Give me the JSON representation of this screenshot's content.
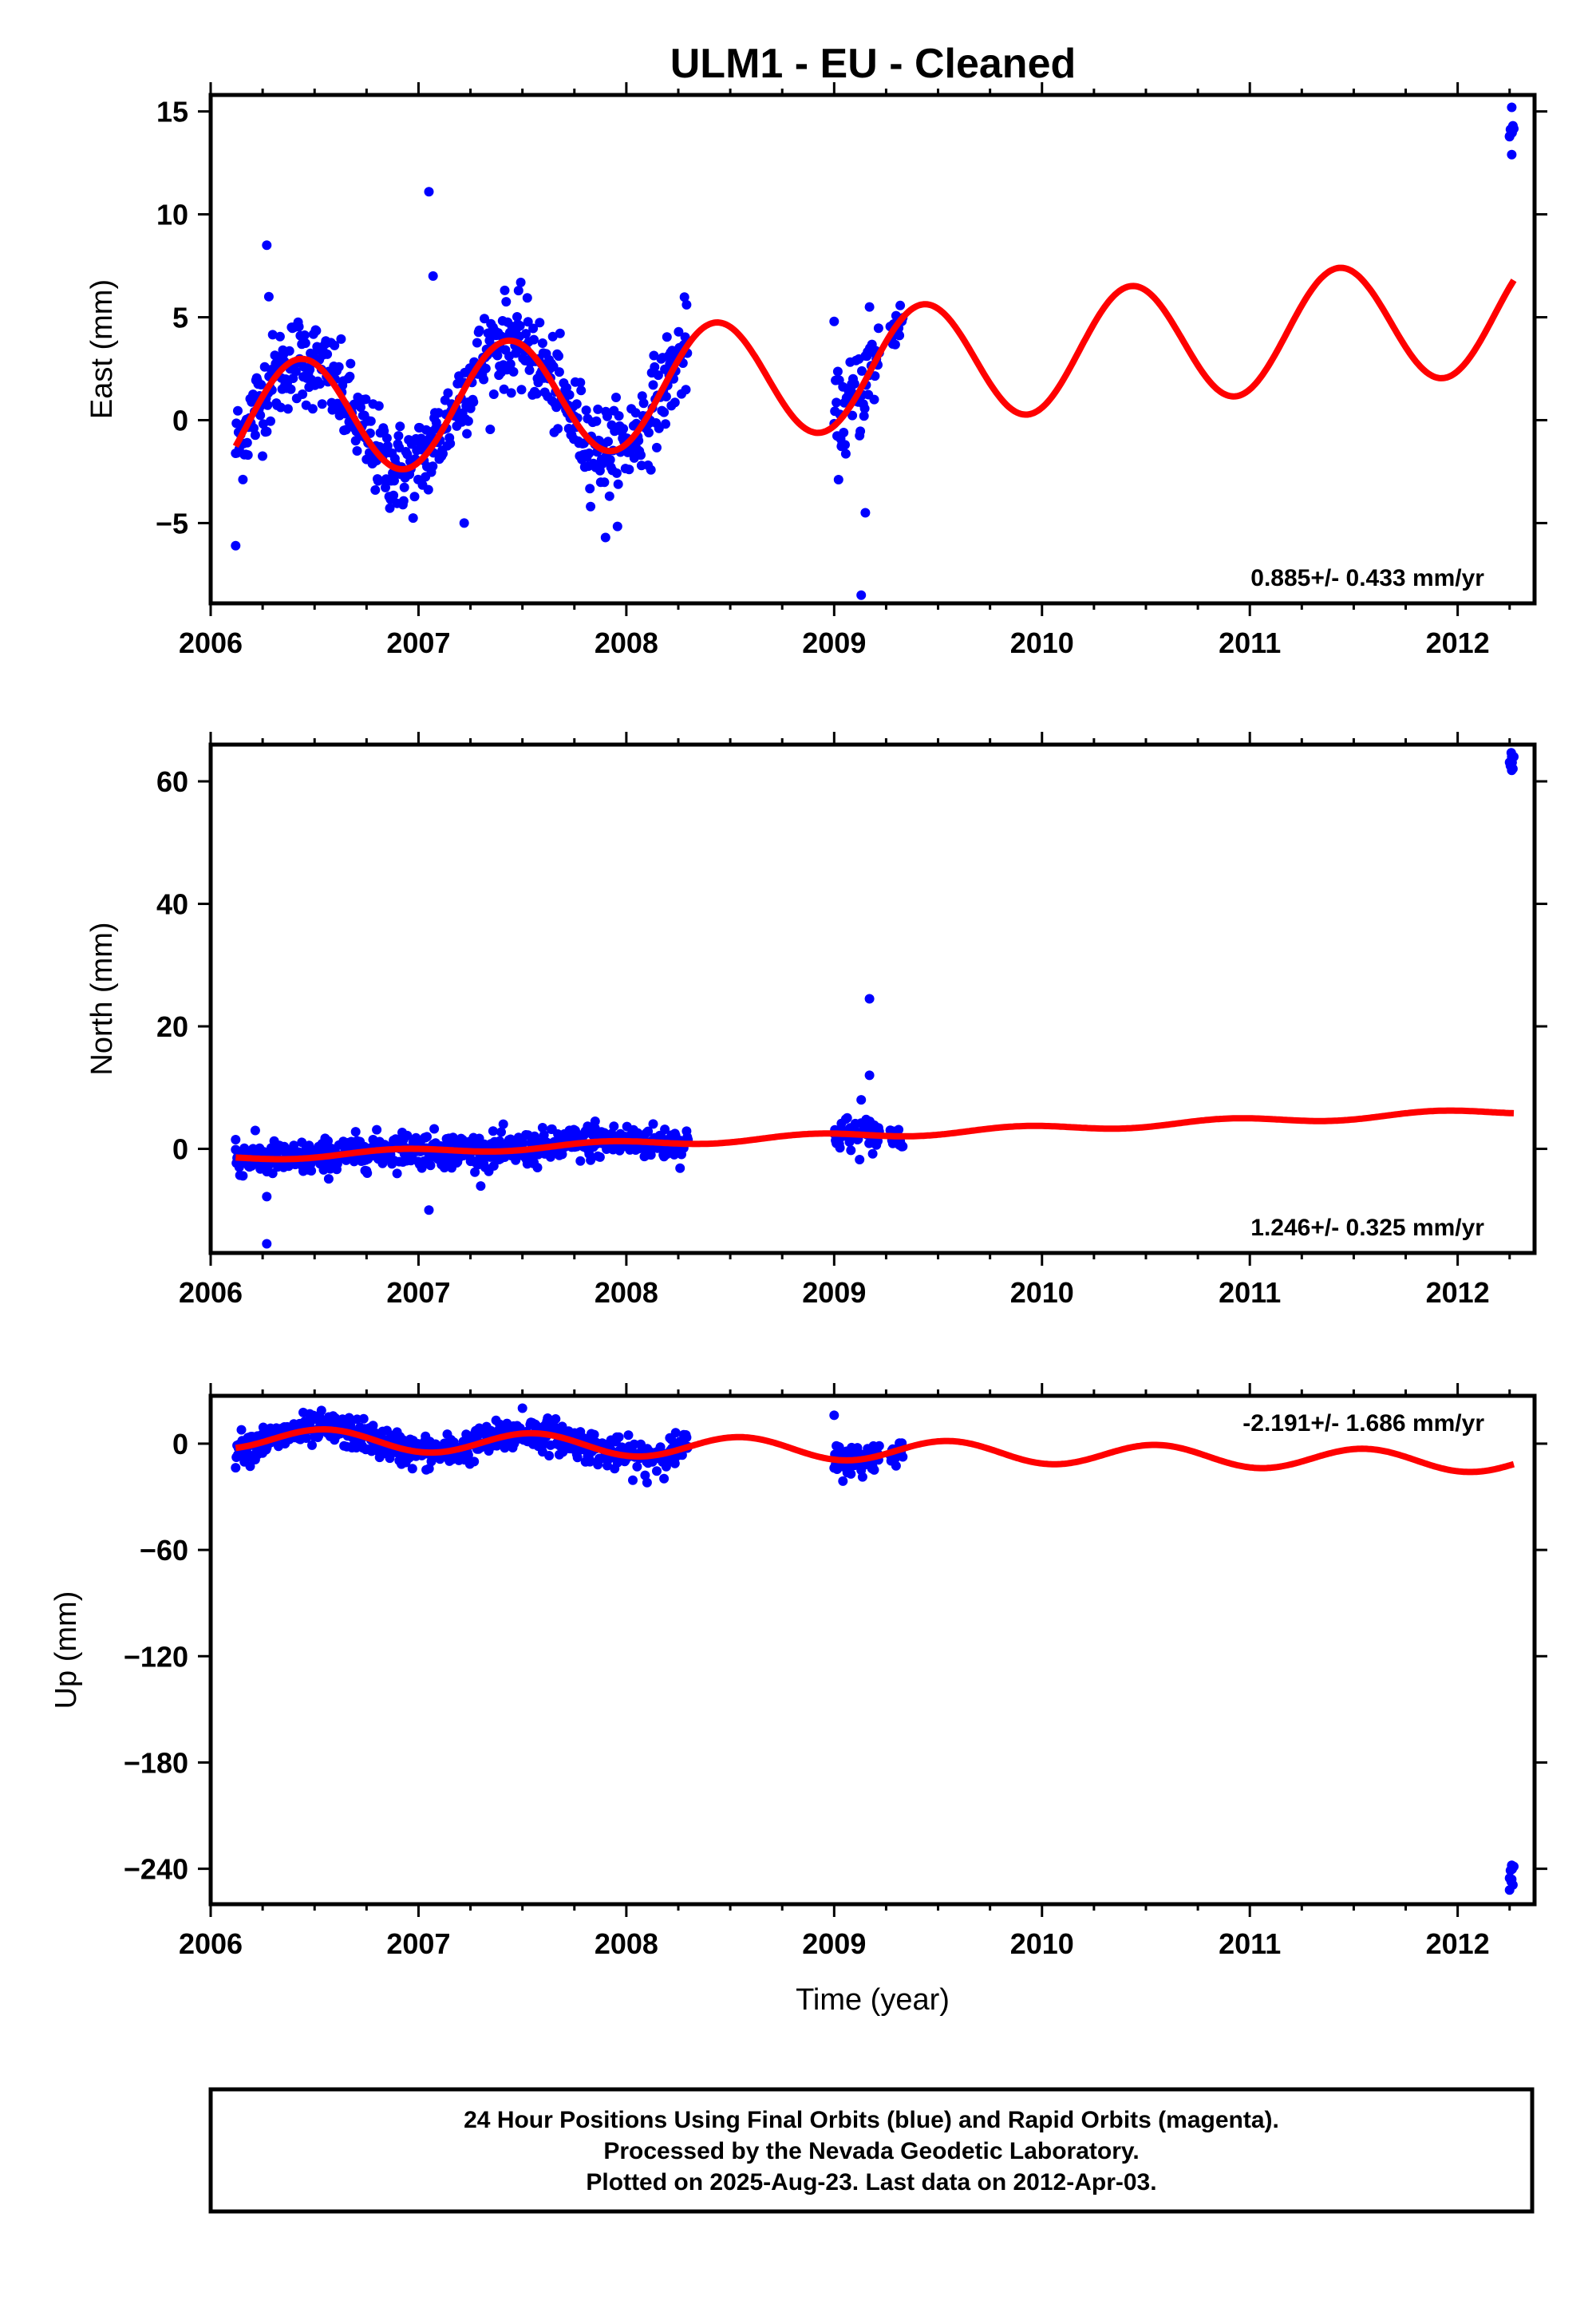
{
  "figure": {
    "title": "ULM1  - EU - Cleaned",
    "footer": [
      "24 Hour Positions Using Final Orbits (blue) and Rapid Orbits (magenta).",
      "Processed by the Nevada Geodetic Laboratory.",
      "Plotted on 2025-Aug-23. Last data on 2012-Apr-03."
    ]
  },
  "colors": {
    "data_points": "#0000ff",
    "model_fit": "#ff0000",
    "axes": "#000000"
  },
  "chart_data": [
    {
      "type": "scatter",
      "name": "east",
      "ylabel": "East (mm)",
      "xlabel": "",
      "xlim": [
        2006.0,
        2012.37
      ],
      "ylim": [
        -8.9,
        15.8
      ],
      "xticks": [
        2006,
        2007,
        2008,
        2009,
        2010,
        2011,
        2012
      ],
      "yticks": [
        -5,
        0,
        5,
        10,
        15
      ],
      "rate_text": "0.885+/- 0.433 mm/yr",
      "rate_position": "bottom-right",
      "model": {
        "t0": 2006.12,
        "t_end": 2012.27,
        "offset": -0.2,
        "rate": 0.885,
        "amplitude": 2.9,
        "phase_peak": 0.43
      },
      "data_segments": [
        {
          "start": 2006.12,
          "end": 2008.3,
          "spread": 1.1
        },
        {
          "start": 2009.0,
          "end": 2009.22,
          "spread": 1.1
        },
        {
          "start": 2009.27,
          "end": 2009.33,
          "spread": 0.6
        },
        {
          "start": 2012.25,
          "end": 2012.27,
          "spread": 0.4,
          "y_override": 14.0
        }
      ],
      "outliers": [
        [
          2006.12,
          -6.1
        ],
        [
          2006.27,
          8.5
        ],
        [
          2006.28,
          6.0
        ],
        [
          2007.05,
          11.1
        ],
        [
          2007.07,
          7.0
        ],
        [
          2007.22,
          -5.0
        ],
        [
          2009.0,
          4.8
        ],
        [
          2009.15,
          -4.5
        ],
        [
          2009.13,
          -8.5
        ],
        [
          2009.17,
          5.5
        ],
        [
          2007.9,
          -5.7
        ],
        [
          2012.26,
          15.2
        ],
        [
          2012.26,
          12.9
        ],
        [
          2012.25,
          13.8
        ]
      ]
    },
    {
      "type": "scatter",
      "name": "north",
      "ylabel": "North (mm)",
      "xlabel": "",
      "xlim": [
        2006.0,
        2012.37
      ],
      "ylim": [
        -17,
        66
      ],
      "xticks": [
        2006,
        2007,
        2008,
        2009,
        2010,
        2011,
        2012
      ],
      "yticks": [
        0,
        20,
        40,
        60
      ],
      "rate_text": "1.246+/- 0.325 mm/yr",
      "rate_position": "bottom-right",
      "model": {
        "t0": 2006.12,
        "t_end": 2012.27,
        "offset": -1.5,
        "rate": 1.246,
        "amplitude": 0.5,
        "phase_peak": 0.9
      },
      "data_segments": [
        {
          "start": 2006.12,
          "end": 2008.3,
          "spread": 1.4
        },
        {
          "start": 2009.0,
          "end": 2009.22,
          "spread": 1.4
        },
        {
          "start": 2009.27,
          "end": 2009.33,
          "spread": 1.0
        },
        {
          "start": 2012.25,
          "end": 2012.27,
          "spread": 0.7,
          "y_override": 63.0
        }
      ],
      "outliers": [
        [
          2006.12,
          1.5
        ],
        [
          2006.27,
          -15.5
        ],
        [
          2006.27,
          -7.8
        ],
        [
          2007.05,
          -10.0
        ],
        [
          2007.85,
          4.5
        ],
        [
          2009.17,
          24.5
        ],
        [
          2009.17,
          12.0
        ],
        [
          2009.13,
          8.0
        ],
        [
          2012.26,
          64.0
        ],
        [
          2012.26,
          61.8
        ]
      ]
    },
    {
      "type": "scatter",
      "name": "up",
      "ylabel": "Up (mm)",
      "xlabel": "Time (year)",
      "xlim": [
        2006.0,
        2012.37
      ],
      "ylim": [
        -260,
        27
      ],
      "xticks": [
        2006,
        2007,
        2008,
        2009,
        2010,
        2011,
        2012
      ],
      "yticks": [
        0,
        -60,
        -120,
        -180,
        -240
      ],
      "rate_text": "-2.191+/- 1.686 mm/yr",
      "rate_position": "top-right",
      "model": {
        "t0": 2006.12,
        "t_end": 2012.27,
        "offset": 3.0,
        "rate": -2.191,
        "amplitude": 6.0,
        "phase_peak": 0.55
      },
      "data_segments": [
        {
          "start": 2006.12,
          "end": 2008.3,
          "spread": 4.5
        },
        {
          "start": 2009.0,
          "end": 2009.22,
          "spread": 4.5
        },
        {
          "start": 2009.27,
          "end": 2009.33,
          "spread": 3.0
        },
        {
          "start": 2012.25,
          "end": 2012.27,
          "spread": 3.0,
          "y_override": -245.0
        }
      ],
      "outliers": [
        [
          2009.0,
          16.0
        ],
        [
          2009.13,
          -15.0
        ],
        [
          2007.5,
          20.0
        ],
        [
          2008.1,
          -22.0
        ],
        [
          2012.26,
          -238.0
        ],
        [
          2012.25,
          -252.0
        ],
        [
          2012.26,
          -246.0
        ]
      ]
    }
  ]
}
